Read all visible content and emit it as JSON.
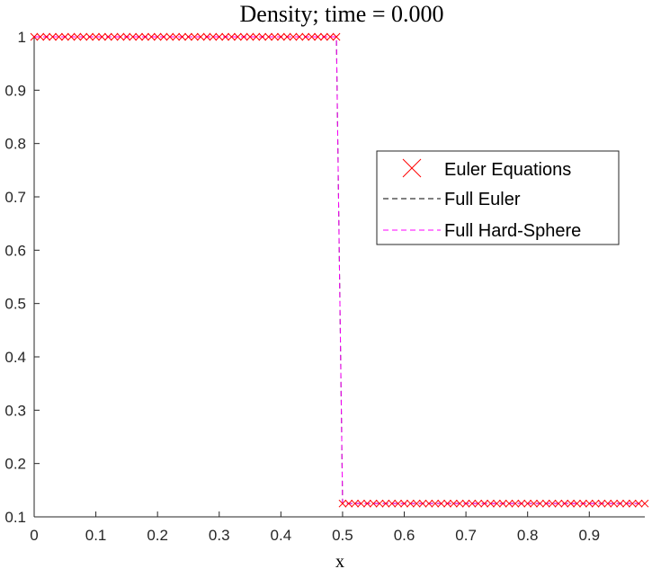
{
  "chart_data": {
    "type": "line",
    "title": "Density; time = 0.000",
    "xlabel": "x",
    "ylabel": "",
    "xlim": [
      0,
      0.99
    ],
    "ylim": [
      0.1,
      1
    ],
    "xticks": [
      "0",
      "0.1",
      "0.2",
      "0.3",
      "0.4",
      "0.5",
      "0.6",
      "0.7",
      "0.8",
      "0.9"
    ],
    "yticks": [
      "0.1",
      "0.2",
      "0.3",
      "0.4",
      "0.5",
      "0.6",
      "0.7",
      "0.8",
      "0.9",
      "1"
    ],
    "grid": false,
    "legend_position": "right-middle",
    "x_start": 0,
    "x_step": 0.01,
    "n_points": 100,
    "left_state": 1,
    "right_state": 0.125,
    "discontinuity_x": 0.5,
    "series": [
      {
        "name": "Euler Equations",
        "style": "red x markers",
        "color": "#ff0000"
      },
      {
        "name": "Full Euler",
        "style": "black dashed",
        "color": "#000000"
      },
      {
        "name": "Full Hard-Sphere",
        "style": "magenta dashed",
        "color": "#ff00ff"
      }
    ]
  }
}
